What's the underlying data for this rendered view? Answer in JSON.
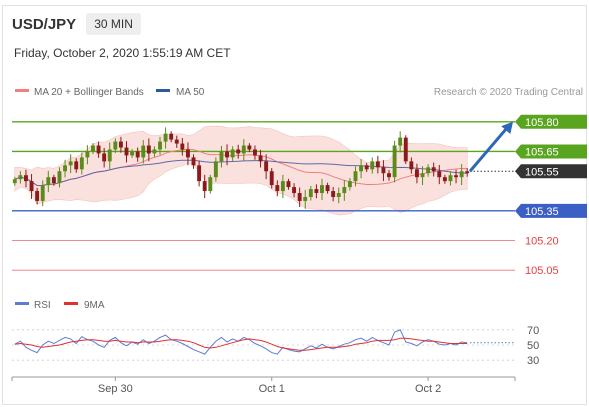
{
  "header": {
    "symbol": "USD/JPY",
    "timeframe": "30 MIN",
    "datetime": "Friday, October 2, 2020 1:55:19 AM CET"
  },
  "legend": {
    "ma20_label": "MA 20 + Bollinger Bands",
    "ma50_label": "MA 50",
    "copyright": "Research © 2020 Trading Central"
  },
  "colors": {
    "bull": "#5c8a1c",
    "bear": "#8b1a1a",
    "ma20": "#f08080",
    "band_fill": "#fbdcd8",
    "ma50": "#5e6aa8",
    "resistance": "#5aa520",
    "support_blue": "#3c5fc6",
    "support_red": "#e84040",
    "arrow": "#2e66b8",
    "rsi": "#5b7bd6",
    "rsi_ma": "#e03030"
  },
  "chart_data": [
    {
      "type": "candlestick",
      "instrument": "USD/JPY",
      "timeframe": "30 MIN",
      "x_ticks": [
        "Sep 30",
        "Oct 1",
        "Oct 2"
      ],
      "ylim": [
        104.95,
        105.9
      ],
      "last_price": 105.55,
      "levels": [
        {
          "value": 105.8,
          "label": "105.80",
          "kind": "resistance"
        },
        {
          "value": 105.65,
          "label": "105.65",
          "kind": "resistance"
        },
        {
          "value": 105.55,
          "label": "105.55",
          "kind": "last"
        },
        {
          "value": 105.35,
          "label": "105.35",
          "kind": "pivot"
        },
        {
          "value": 105.2,
          "label": "105.20",
          "kind": "support"
        },
        {
          "value": 105.05,
          "label": "105.05",
          "kind": "support"
        }
      ],
      "forecast_target": 105.8,
      "close_series": [
        105.51,
        105.53,
        105.5,
        105.45,
        105.4,
        105.48,
        105.52,
        105.49,
        105.55,
        105.58,
        105.6,
        105.56,
        105.62,
        105.65,
        105.68,
        105.64,
        105.6,
        105.66,
        105.7,
        105.67,
        105.63,
        105.65,
        105.62,
        105.68,
        105.64,
        105.66,
        105.7,
        105.74,
        105.71,
        105.69,
        105.66,
        105.62,
        105.58,
        105.5,
        105.45,
        105.52,
        105.6,
        105.65,
        105.62,
        105.66,
        105.64,
        105.68,
        105.66,
        105.63,
        105.6,
        105.55,
        105.48,
        105.45,
        105.5,
        105.47,
        105.44,
        105.4,
        105.42,
        105.46,
        105.44,
        105.48,
        105.45,
        105.42,
        105.44,
        105.47,
        105.5,
        105.55,
        105.58,
        105.56,
        105.6,
        105.57,
        105.54,
        105.52,
        105.68,
        105.72,
        105.6,
        105.56,
        105.52,
        105.54,
        105.57,
        105.55,
        105.52,
        105.5,
        105.53,
        105.52,
        105.55,
        105.54
      ]
    },
    {
      "type": "line",
      "name": "RSI",
      "yticks": [
        70,
        50,
        30
      ],
      "ylim": [
        25,
        75
      ],
      "series": [
        {
          "name": "RSI",
          "values": [
            51,
            55,
            47,
            43,
            40,
            50,
            55,
            52,
            56,
            60,
            58,
            52,
            61,
            57,
            55,
            50,
            47,
            56,
            60,
            53,
            49,
            54,
            51,
            57,
            52,
            55,
            60,
            63,
            57,
            55,
            52,
            48,
            44,
            41,
            38,
            47,
            55,
            60,
            54,
            58,
            55,
            60,
            57,
            52,
            49,
            45,
            40,
            38,
            47,
            44,
            42,
            41,
            45,
            49,
            46,
            51,
            47,
            45,
            48,
            51,
            53,
            57,
            59,
            55,
            60,
            56,
            53,
            50,
            67,
            70,
            54,
            52,
            49,
            54,
            57,
            55,
            51,
            50,
            52,
            50,
            54,
            53
          ]
        },
        {
          "name": "9MA",
          "values": [
            51,
            52,
            51,
            50,
            48,
            47,
            48,
            49,
            50,
            52,
            54,
            55,
            56,
            57,
            57,
            56,
            55,
            55,
            56,
            55,
            54,
            54,
            53,
            54,
            54,
            54,
            55,
            56,
            57,
            57,
            56,
            55,
            53,
            50,
            47,
            46,
            47,
            49,
            51,
            53,
            55,
            57,
            58,
            57,
            56,
            54,
            51,
            48,
            46,
            45,
            44,
            43,
            43,
            44,
            45,
            46,
            47,
            47,
            47,
            48,
            49,
            51,
            52,
            53,
            55,
            56,
            56,
            56,
            57,
            59,
            59,
            58,
            57,
            56,
            55,
            55,
            54,
            53,
            52,
            52,
            52,
            52
          ]
        }
      ]
    }
  ]
}
